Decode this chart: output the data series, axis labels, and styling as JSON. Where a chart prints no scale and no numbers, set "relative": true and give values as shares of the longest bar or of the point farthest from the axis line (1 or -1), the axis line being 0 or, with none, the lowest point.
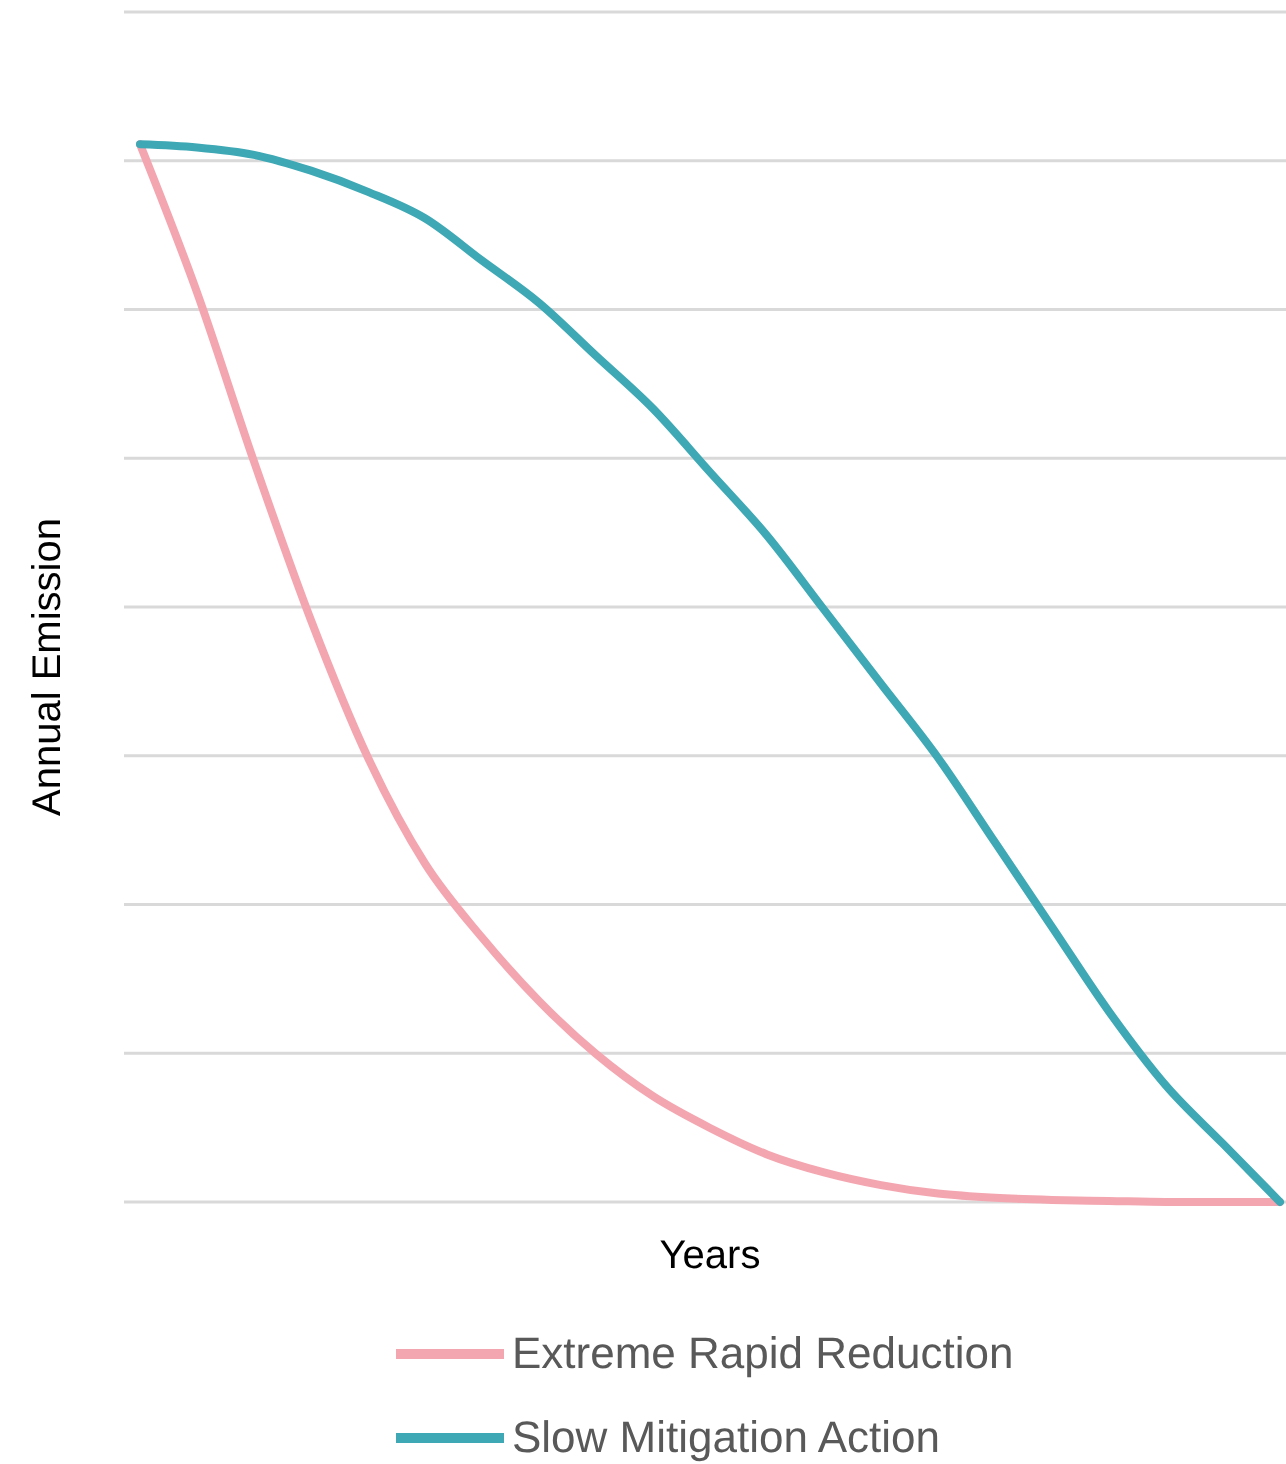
{
  "chart_data": {
    "type": "line",
    "relative": true,
    "xlabel": "Years",
    "ylabel": "Annual Emission",
    "grid": "y",
    "legend": "bottom",
    "marker": "none",
    "line_style": "solid",
    "categories": [
      null,
      null,
      null,
      null,
      null,
      null,
      null,
      null,
      null,
      null,
      null,
      null,
      null,
      null,
      null,
      null,
      null,
      null,
      null,
      null,
      null
    ],
    "series": [
      {
        "name": "Extreme Rapid Reduction",
        "color": "#f4a6b0",
        "values": [
          1,
          0.86,
          0.7,
          0.55,
          0.42,
          0.32,
          0.25,
          0.19,
          0.14,
          0.1,
          0.07,
          0.045,
          0.028,
          0.016,
          0.008,
          0.004,
          0.002,
          0.001,
          0,
          0,
          0
        ]
      },
      {
        "name": "Slow Mitigation Action",
        "color": "#3ea8b5",
        "values": [
          1,
          0.997,
          0.99,
          0.975,
          0.955,
          0.93,
          0.89,
          0.85,
          0.8,
          0.75,
          0.69,
          0.63,
          0.56,
          0.49,
          0.42,
          0.34,
          0.26,
          0.18,
          0.11,
          0.055,
          0
        ]
      }
    ]
  }
}
